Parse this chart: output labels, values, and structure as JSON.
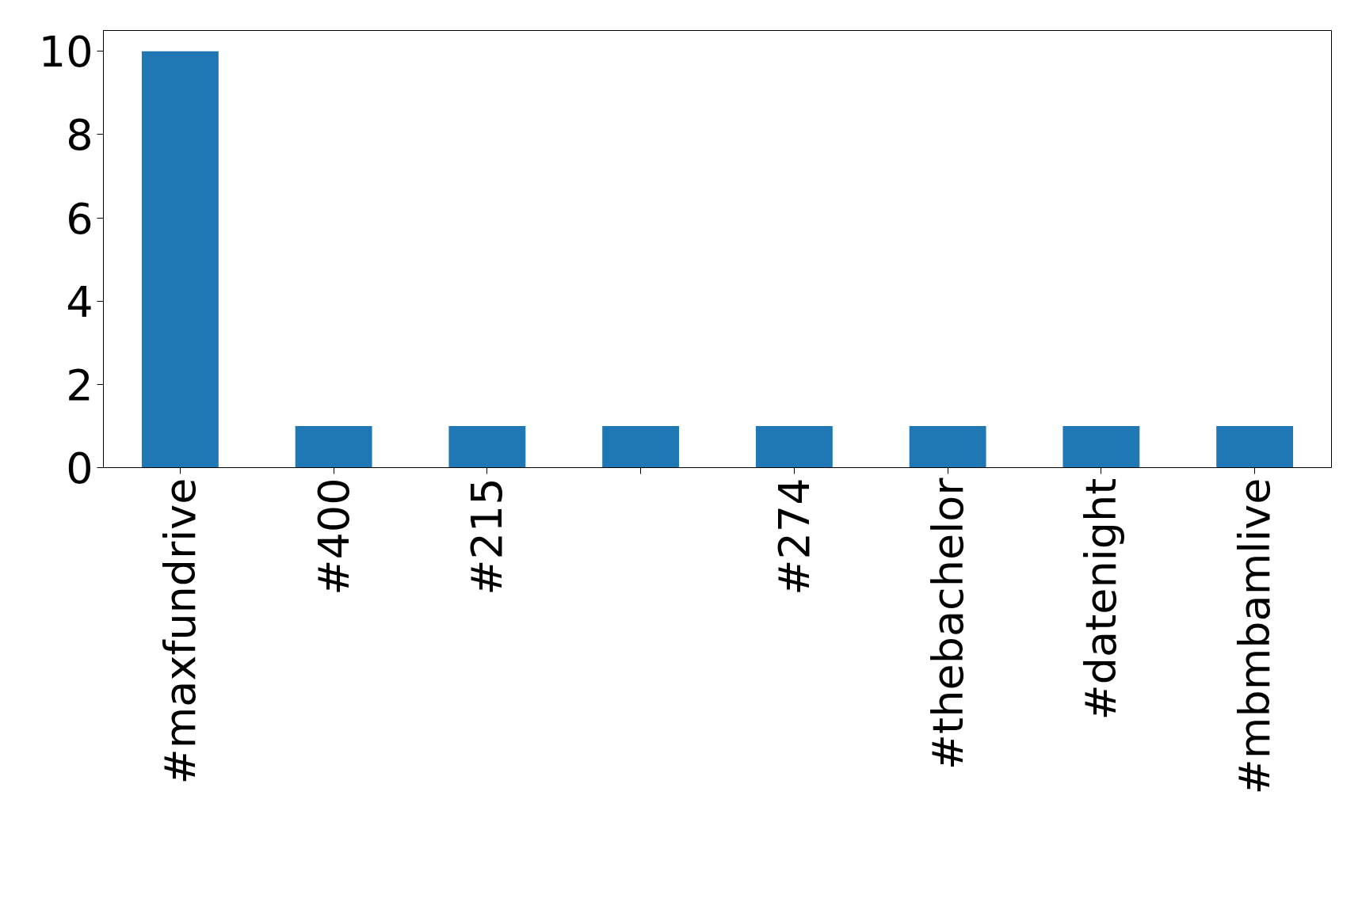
{
  "chart_data": {
    "type": "bar",
    "categories": [
      "#maxfundrive",
      "#400",
      "#215",
      null,
      "#274",
      "#thebachelor",
      "#datenight",
      "#mbmbamlive"
    ],
    "values": [
      10,
      1,
      1,
      1,
      1,
      1,
      1,
      1
    ],
    "color": "#1f77b4",
    "ylim": [
      0,
      10.5
    ],
    "yticks": [
      0,
      2,
      4,
      6,
      8,
      10
    ],
    "grid": false
  }
}
